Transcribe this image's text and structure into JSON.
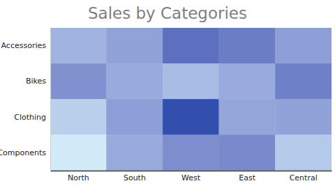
{
  "chart_data": {
    "type": "heatmap",
    "title": "Sales by Categories",
    "categories": [
      "North",
      "South",
      "West",
      "East",
      "Central"
    ],
    "rows": [
      "Accessories",
      "Bikes",
      "Clothing",
      "Components"
    ],
    "values": [
      [
        40,
        50,
        80,
        72,
        52
      ],
      [
        60,
        45,
        35,
        45,
        70
      ],
      [
        25,
        52,
        100,
        48,
        50
      ],
      [
        10,
        45,
        62,
        64,
        28
      ]
    ]
  }
}
